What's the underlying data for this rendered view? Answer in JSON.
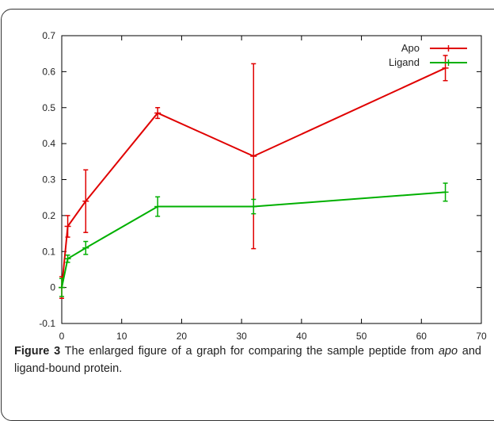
{
  "chart_data": {
    "type": "line",
    "title": "",
    "xlabel": "",
    "ylabel": "",
    "xlim": [
      0,
      70
    ],
    "ylim": [
      -0.1,
      0.7
    ],
    "xticks": [
      "0",
      "10",
      "20",
      "30",
      "40",
      "50",
      "60",
      "70"
    ],
    "yticks": [
      "-0.1",
      "0",
      "0.1",
      "0.2",
      "0.3",
      "0.4",
      "0.5",
      "0.6",
      "0.7"
    ],
    "grid": false,
    "legend_position": "top-right",
    "series": [
      {
        "name": "Apo",
        "color": "#e00000",
        "x": [
          0,
          1,
          4,
          16,
          32,
          64
        ],
        "y": [
          0.0,
          0.17,
          0.24,
          0.485,
          0.365,
          0.61
        ],
        "err": [
          0.03,
          0.03,
          0.087,
          0.015,
          0.257,
          0.035
        ]
      },
      {
        "name": "Ligand",
        "color": "#00b000",
        "x": [
          0,
          1,
          4,
          16,
          32,
          64
        ],
        "y": [
          0.0,
          0.08,
          0.11,
          0.225,
          0.225,
          0.265
        ],
        "err": [
          0.025,
          0.01,
          0.018,
          0.027,
          0.02,
          0.025
        ]
      }
    ]
  },
  "caption": {
    "label": "Figure 3",
    "text_before": " The enlarged figure of a graph for comparing the sample peptide from ",
    "italic": "apo",
    "text_after": " and ligand-bound protein."
  }
}
